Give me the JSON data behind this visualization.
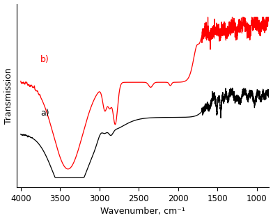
{
  "title": "",
  "xlabel": "Wavenumber, cm⁻¹",
  "ylabel": "Transmission",
  "xticks": [
    4000,
    3500,
    3000,
    2500,
    2000,
    1500,
    1000
  ],
  "label_a": "a)",
  "label_b": "b)",
  "line_color_a": "#000000",
  "line_color_b": "#ff0000",
  "linewidth": 0.9,
  "figsize": [
    3.92,
    3.16
  ],
  "dpi": 100
}
